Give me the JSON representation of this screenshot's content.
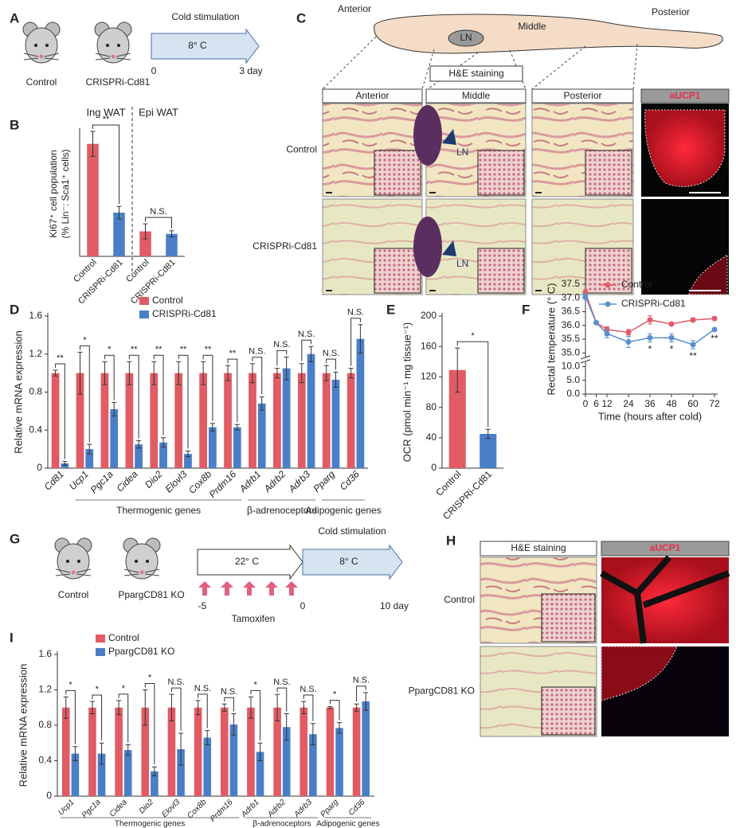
{
  "figure": {
    "panel_labels": [
      "A",
      "B",
      "C",
      "D",
      "E",
      "F",
      "G",
      "H",
      "I"
    ],
    "a": {
      "mice": [
        "Control",
        "CRISPRi-Cd81"
      ],
      "arrow_title": "Cold stimulation",
      "arrow_label": "8° C",
      "start": "0",
      "end": "3 day"
    },
    "c": {
      "regions": [
        "Anterior",
        "Middle",
        "Posterior"
      ],
      "node": "LN",
      "stain": "H&E staining",
      "columns": [
        "Anterior",
        "Middle",
        "Posterior",
        "aUCP1"
      ],
      "rows": [
        "Control",
        "CRISPRi-Cd81"
      ],
      "arrow_labels": [
        "LN",
        "LN"
      ]
    },
    "g": {
      "mice": [
        "Control",
        "PpargCD81 KO"
      ],
      "pre_label": "22° C",
      "arrow_title": "Cold stimulation",
      "arrow_label": "8° C",
      "start": "-5",
      "mid": "0",
      "end": "10 day",
      "treatment": "Tamoxifen"
    },
    "h": {
      "columns": [
        "H&E staining",
        "aUCP1"
      ],
      "rows": [
        "Control",
        "PpargCD81 KO"
      ]
    }
  },
  "chart_data": [
    {
      "type": "bar",
      "ylabel": [
        "Ki67⁺ cell population",
        "(% Lin⁻: Sca1⁺ cells)"
      ],
      "group_labels": [
        "Ing WAT",
        "Epi WAT"
      ],
      "categories": [
        "Control",
        "CRISPRi-Cd81",
        "Control",
        "CRISPRi-Cd81"
      ],
      "values": [
        18,
        7,
        4,
        3.6
      ],
      "errors": [
        2,
        1,
        1.2,
        0.5
      ],
      "colors": [
        "#e15b64",
        "#4a7fc8",
        "#e15b64",
        "#4a7fc8"
      ],
      "ylim": [
        0,
        20
      ],
      "annotations": [
        "**",
        "N.S."
      ]
    },
    {
      "type": "bar",
      "ylabel": "Relative mRNA expression",
      "categories": [
        "Cd81",
        "Ucp1",
        "Pgc1a",
        "Cidea",
        "Dio2",
        "Elovl3",
        "Cox8b",
        "Prdm16",
        "Adrb1",
        "Adrb2",
        "Adrb3",
        "Pparg",
        "Cd36"
      ],
      "series": [
        {
          "name": "Control",
          "color": "#e15b64",
          "values": [
            1,
            1,
            1,
            1,
            1,
            1,
            1,
            1,
            1,
            1,
            1,
            1,
            1
          ],
          "errors": [
            0.03,
            0.22,
            0.12,
            0.12,
            0.12,
            0.12,
            0.12,
            0.08,
            0.1,
            0.05,
            0.1,
            0.08,
            0.05
          ]
        },
        {
          "name": "CRISPRi-Cd81",
          "color": "#4a7fc8",
          "values": [
            0.05,
            0.2,
            0.62,
            0.25,
            0.27,
            0.15,
            0.43,
            0.43,
            0.68,
            1.05,
            1.2,
            0.93,
            1.36
          ],
          "errors": [
            0.02,
            0.05,
            0.07,
            0.04,
            0.05,
            0.03,
            0.04,
            0.03,
            0.07,
            0.12,
            0.08,
            0.08,
            0.15
          ]
        }
      ],
      "ylim": [
        0,
        1.6
      ],
      "yticks": [
        0,
        0.4,
        0.8,
        1.2,
        1.6
      ],
      "significance": [
        "**",
        "*",
        "*",
        "**",
        "**",
        "**",
        "**",
        "**",
        "N.S.",
        "N.S.",
        "N.S.",
        "N.S.",
        "N.S."
      ],
      "group_labels": [
        "Thermogenic genes",
        "β-adrenoceptors",
        "Adipogenic genes"
      ],
      "legend": "top-left"
    },
    {
      "type": "bar",
      "ylabel": "OCR (pmol min⁻¹ mg tissue⁻¹)",
      "categories": [
        "Control",
        "CRISPRi-Cd81"
      ],
      "values": [
        129,
        45
      ],
      "errors": [
        29,
        6
      ],
      "colors": [
        "#e15b64",
        "#4a7fc8"
      ],
      "ylim": [
        0,
        200
      ],
      "yticks": [
        0,
        40,
        80,
        120,
        160,
        200
      ],
      "annotations": [
        "*"
      ]
    },
    {
      "type": "line",
      "xlabel": "Time (hours after cold)",
      "ylabel": "Rectal temperature (° C)",
      "x": [
        0,
        6,
        12,
        24,
        36,
        48,
        60,
        72
      ],
      "series": [
        {
          "name": "Control",
          "color": "#e15b6a",
          "values": [
            37.2,
            36.1,
            35.85,
            35.75,
            36.2,
            36.05,
            36.2,
            36.25
          ],
          "errors": [
            0.1,
            0.05,
            0.1,
            0.1,
            0.15,
            0.05,
            0.07,
            0.05
          ]
        },
        {
          "name": "CRISPRi-Cd81",
          "color": "#5b8fd0",
          "values": [
            37.05,
            36.1,
            35.7,
            35.4,
            35.55,
            35.55,
            35.3,
            35.85
          ],
          "errors": [
            0.1,
            0.05,
            0.15,
            0.2,
            0.15,
            0.15,
            0.15,
            0.05
          ]
        }
      ],
      "xlim": [
        0,
        72
      ],
      "xticks": [
        0,
        6,
        12,
        24,
        36,
        48,
        60,
        72
      ],
      "ylim": [
        0,
        37.5
      ],
      "yticks": [
        {
          "value": 0,
          "label": "0.0"
        },
        {
          "value": 5,
          "label": "5.0"
        },
        {
          "value": 10,
          "label": "10.0"
        },
        {
          "value": 35,
          "label": "35.0"
        },
        35.5,
        {
          "value": 36,
          "label": "36.0"
        },
        36.5,
        {
          "value": 37,
          "label": "37.0"
        },
        37.5
      ],
      "axis_break": true,
      "significance": [
        null,
        null,
        null,
        null,
        "*",
        "*",
        "**",
        "**"
      ],
      "legend": "top-right"
    },
    {
      "type": "bar",
      "ylabel": "Relative mRNA expression",
      "categories": [
        "Ucp1",
        "Pgc1a",
        "Cidea",
        "Dio2",
        "Elovl3",
        "Cox8b",
        "Prdm16",
        "Adrb1",
        "Adrb2",
        "Adrb3",
        "Pparg",
        "Cd36"
      ],
      "series": [
        {
          "name": "Control",
          "color": "#e15b64",
          "values": [
            1,
            1,
            1,
            1,
            1,
            1,
            1,
            1,
            1,
            1,
            1,
            1
          ],
          "errors": [
            0.12,
            0.07,
            0.08,
            0.2,
            0.15,
            0.08,
            0.04,
            0.12,
            0.15,
            0.07,
            0.01,
            0.04
          ]
        },
        {
          "name": "PpargCD81 KO",
          "color": "#4a7fc8",
          "values": [
            0.48,
            0.48,
            0.52,
            0.28,
            0.53,
            0.66,
            0.81,
            0.5,
            0.78,
            0.7,
            0.77,
            1.07
          ],
          "errors": [
            0.08,
            0.12,
            0.06,
            0.05,
            0.18,
            0.08,
            0.12,
            0.1,
            0.15,
            0.12,
            0.06,
            0.1
          ]
        }
      ],
      "ylim": [
        0,
        1.6
      ],
      "yticks": [
        0,
        0.4,
        0.8,
        1.2,
        1.6
      ],
      "significance": [
        "*",
        "*",
        "*",
        "*",
        "N.S.",
        "N.S.",
        "N.S.",
        "*",
        "N.S.",
        "N.S.",
        "*",
        "N.S."
      ],
      "group_labels": [
        "Thermogenic genes",
        "β-adrenoceptors",
        "Adipogenic genes"
      ],
      "legend": "top-left"
    }
  ]
}
